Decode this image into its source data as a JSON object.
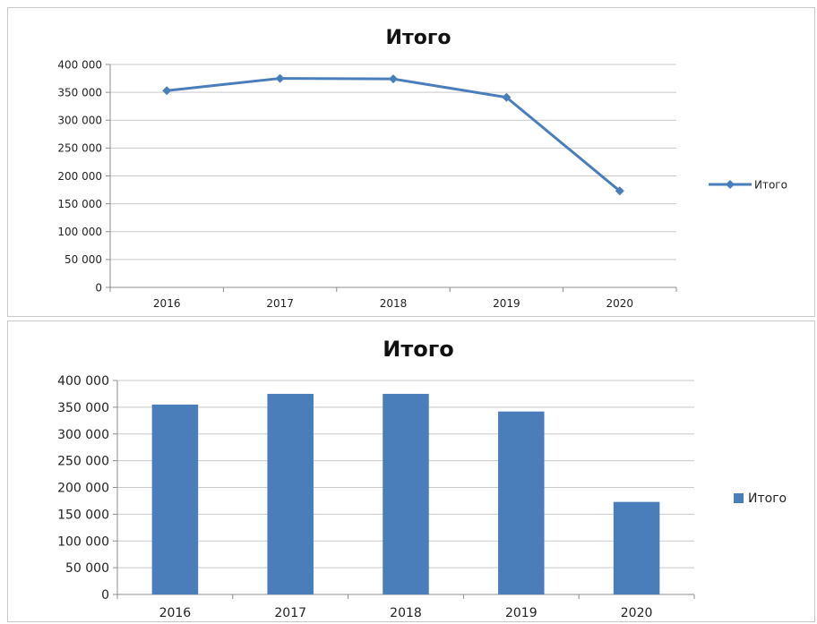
{
  "chart_data": [
    {
      "type": "line",
      "title": "Итого",
      "categories": [
        "2016",
        "2017",
        "2018",
        "2019",
        "2020"
      ],
      "series": [
        {
          "name": "Итого",
          "values": [
            353000,
            375000,
            374000,
            341000,
            173000
          ]
        }
      ],
      "ylim": [
        0,
        400000
      ],
      "yticks": [
        "0",
        "50 000",
        "100 000",
        "150 000",
        "200 000",
        "250 000",
        "300 000",
        "350 000",
        "400 000"
      ],
      "xlabel": "",
      "ylabel": "",
      "grid": true,
      "legend": "right",
      "color": "#4a7ebb"
    },
    {
      "type": "bar",
      "title": "Итого",
      "categories": [
        "2016",
        "2017",
        "2018",
        "2019",
        "2020"
      ],
      "series": [
        {
          "name": "Итого",
          "values": [
            355000,
            375000,
            375000,
            342000,
            173000
          ]
        }
      ],
      "ylim": [
        0,
        400000
      ],
      "yticks": [
        "0",
        "50 000",
        "100 000",
        "150 000",
        "200 000",
        "250 000",
        "300 000",
        "350 000",
        "400 000"
      ],
      "xlabel": "",
      "ylabel": "",
      "grid": true,
      "legend": "right",
      "color": "#4a7ebb"
    }
  ]
}
